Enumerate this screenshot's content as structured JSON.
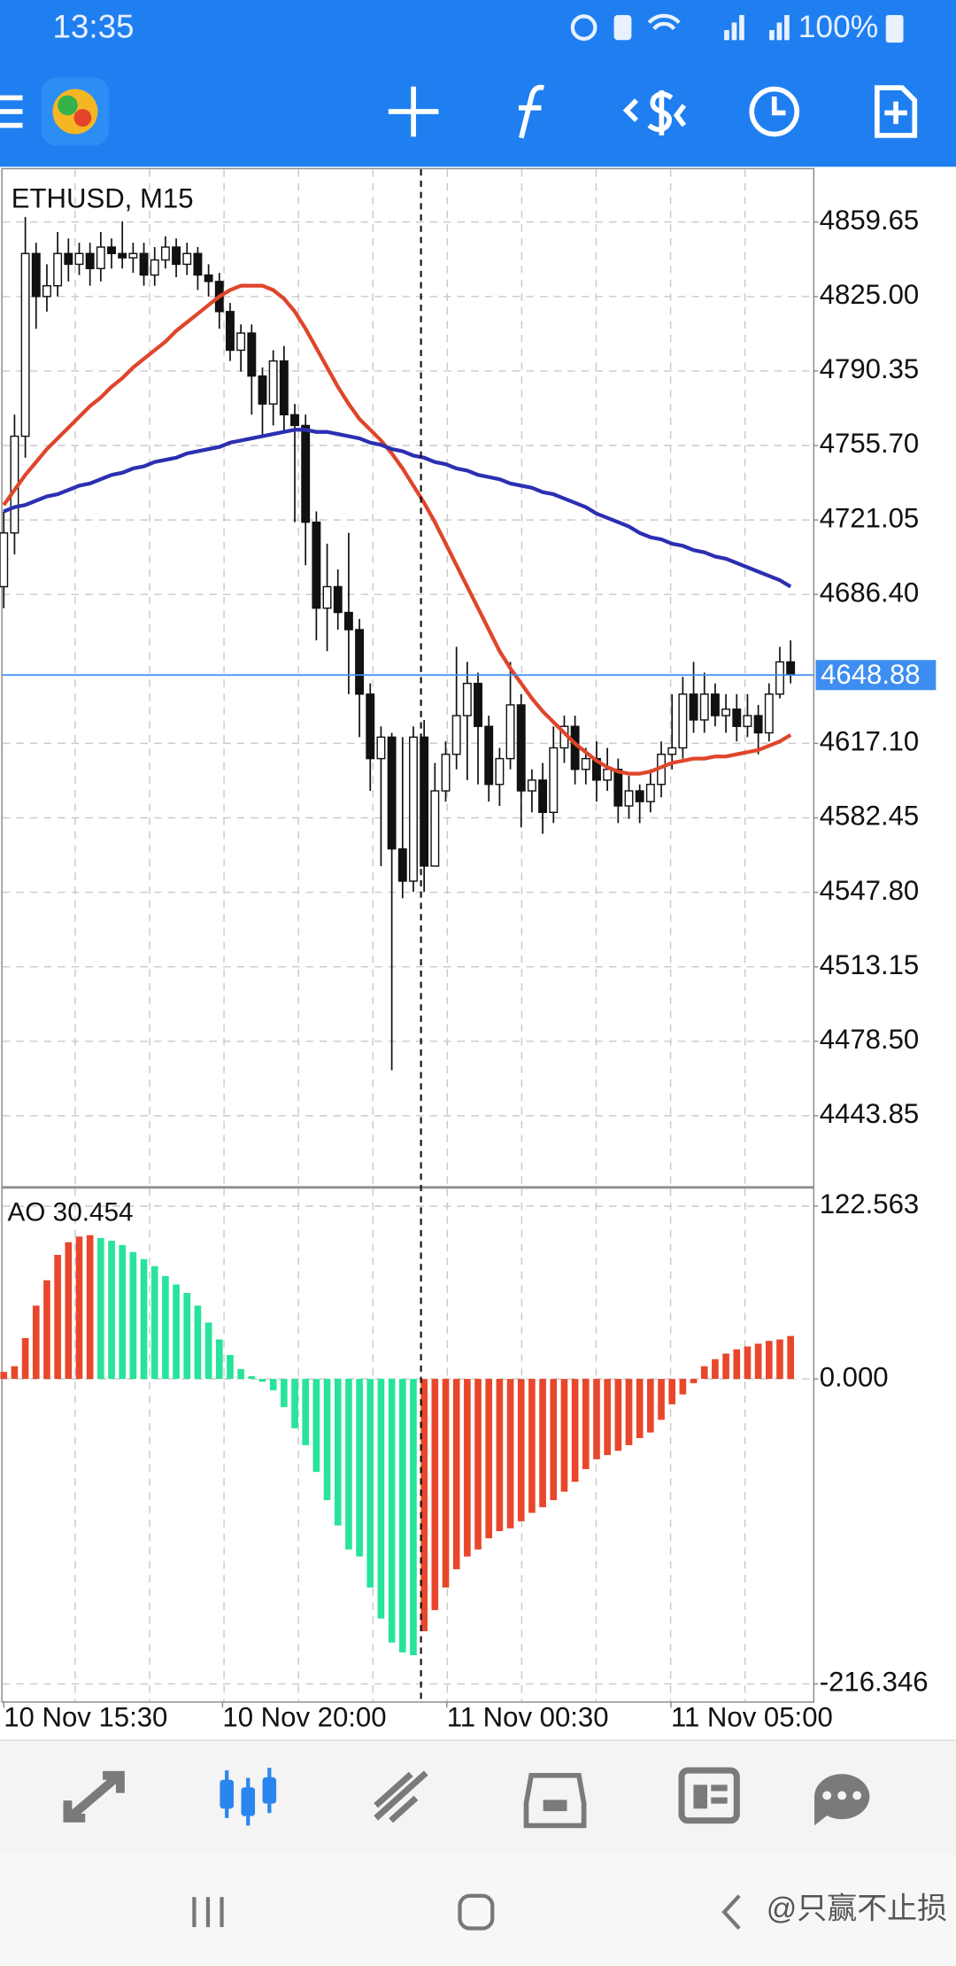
{
  "status_bar": {
    "time": "13:35",
    "battery": "100%"
  },
  "watermark": "@只赢不止损",
  "chart_data": [
    {
      "type": "candlestick",
      "title": "ETHUSD, M15",
      "candles": {
        "open": [
          4690,
          4715,
          4760,
          4845,
          4825,
          4830,
          4845,
          4840,
          4845,
          4838,
          4848,
          4845,
          4843,
          4845,
          4835,
          4842,
          4848,
          4840,
          4845,
          4835,
          4832,
          4818,
          4800,
          4808,
          4788,
          4775,
          4795,
          4770,
          4765,
          4720,
          4680,
          4690,
          4678,
          4670,
          4640,
          4610,
          4620,
          4568,
          4553,
          4620,
          4560,
          4595,
          4612,
          4630,
          4645,
          4625,
          4598,
          4610,
          4635,
          4595,
          4600,
          4585,
          4615,
          4625,
          4605,
          4610,
          4600,
          4605,
          4588,
          4595,
          4590,
          4598,
          4612,
          4615,
          4640,
          4628,
          4640,
          4630,
          4633,
          4625,
          4630,
          4622,
          4640,
          4655
        ],
        "high": [
          4725,
          4770,
          4862,
          4850,
          4840,
          4855,
          4852,
          4850,
          4850,
          4855,
          4852,
          4860,
          4850,
          4850,
          4848,
          4853,
          4852,
          4850,
          4848,
          4840,
          4836,
          4822,
          4812,
          4812,
          4792,
          4800,
          4802,
          4775,
          4770,
          4725,
          4710,
          4698,
          4715,
          4675,
          4645,
          4625,
          4622,
          4620,
          4625,
          4628,
          4608,
          4618,
          4662,
          4655,
          4650,
          4630,
          4615,
          4655,
          4640,
          4605,
          4608,
          4625,
          4630,
          4630,
          4615,
          4618,
          4615,
          4610,
          4602,
          4598,
          4605,
          4618,
          4640,
          4648,
          4655,
          4650,
          4645,
          4640,
          4640,
          4640,
          4635,
          4645,
          4662,
          4665
        ],
        "low": [
          4680,
          4705,
          4750,
          4810,
          4818,
          4825,
          4832,
          4835,
          4830,
          4832,
          4838,
          4838,
          4836,
          4830,
          4830,
          4838,
          4834,
          4835,
          4828,
          4825,
          4810,
          4795,
          4790,
          4770,
          4760,
          4765,
          4762,
          4720,
          4700,
          4665,
          4660,
          4670,
          4640,
          4620,
          4595,
          4560,
          4465,
          4545,
          4548,
          4548,
          4570,
          4590,
          4605,
          4600,
          4598,
          4590,
          4588,
          4605,
          4578,
          4585,
          4575,
          4580,
          4608,
          4598,
          4598,
          4590,
          4595,
          4580,
          4582,
          4580,
          4585,
          4592,
          4605,
          4610,
          4622,
          4622,
          4625,
          4622,
          4618,
          4620,
          4612,
          4618,
          4638,
          4645
        ],
        "close": [
          4715,
          4760,
          4845,
          4825,
          4830,
          4845,
          4840,
          4845,
          4838,
          4848,
          4845,
          4843,
          4845,
          4835,
          4842,
          4848,
          4840,
          4845,
          4835,
          4832,
          4818,
          4800,
          4808,
          4788,
          4775,
          4795,
          4770,
          4765,
          4720,
          4680,
          4690,
          4678,
          4670,
          4640,
          4610,
          4620,
          4568,
          4553,
          4620,
          4560,
          4595,
          4612,
          4630,
          4645,
          4625,
          4598,
          4610,
          4635,
          4595,
          4600,
          4585,
          4615,
          4625,
          4605,
          4610,
          4600,
          4605,
          4588,
          4595,
          4590,
          4598,
          4612,
          4615,
          4640,
          4628,
          4640,
          4630,
          4633,
          4625,
          4630,
          4622,
          4640,
          4655,
          4648.88
        ]
      },
      "up_color": "#ffffff",
      "down_color": "#111111",
      "lines": [
        {
          "color": "#e0452b",
          "values": [
            4728,
            4735,
            4742,
            4748,
            4754,
            4759,
            4764,
            4769,
            4774,
            4778,
            4783,
            4787,
            4792,
            4796,
            4800,
            4804,
            4809,
            4813,
            4817,
            4821,
            4825,
            4828,
            4830,
            4830,
            4830,
            4828,
            4824,
            4818,
            4810,
            4801,
            4792,
            4783,
            4775,
            4768,
            4763,
            4758,
            4752,
            4745,
            4737,
            4729,
            4720,
            4710,
            4700,
            4690,
            4680,
            4670,
            4660,
            4652,
            4645,
            4638,
            4632,
            4627,
            4622,
            4617,
            4613,
            4609,
            4606,
            4604,
            4603,
            4603,
            4604,
            4606,
            4608,
            4609,
            4610,
            4610,
            4611,
            4611,
            4612,
            4613,
            4614,
            4616,
            4618,
            4621
          ]
        },
        {
          "color": "#2c2fb0",
          "values": [
            4725,
            4727,
            4728,
            4730,
            4732,
            4733,
            4735,
            4737,
            4738,
            4740,
            4742,
            4743,
            4745,
            4746,
            4748,
            4749,
            4750,
            4752,
            4753,
            4754,
            4755,
            4757,
            4758,
            4759,
            4760,
            4761,
            4762,
            4763,
            4763,
            4762,
            4762,
            4761,
            4760,
            4759,
            4757,
            4756,
            4754,
            4753,
            4751,
            4750,
            4748,
            4747,
            4745,
            4744,
            4742,
            4741,
            4740,
            4738,
            4737,
            4736,
            4734,
            4733,
            4731,
            4729,
            4727,
            4724,
            4722,
            4720,
            4718,
            4715,
            4713,
            4712,
            4710,
            4709,
            4707,
            4706,
            4704,
            4703,
            4701,
            4699,
            4697,
            4695,
            4693,
            4690
          ]
        }
      ],
      "price_line_color": "#3d8ef0",
      "ylim": [
        4411.1,
        4884.2
      ],
      "yticks": [
        4859.65,
        {
          "value": 4825,
          "label": "4825.00"
        },
        4790.35,
        {
          "value": 4755.7,
          "label": "4755.70"
        },
        4721.05,
        {
          "value": 4686.4,
          "label": "4686.40"
        },
        {
          "value": 4617.1,
          "label": "4617.10"
        },
        4582.45,
        {
          "value": 4547.8,
          "label": "4547.80"
        },
        4513.15,
        {
          "value": 4478.5,
          "label": "4478.50"
        },
        4443.85
      ],
      "xticks": [
        {
          "value": 0,
          "label": "10 Nov 15:30"
        },
        {
          "value": 20.3,
          "label": "10 Nov 20:00"
        },
        {
          "value": 41.1,
          "label": "11 Nov 00:30"
        },
        {
          "value": 61.9,
          "label": "11 Nov 05:00"
        }
      ],
      "grid": true
    },
    {
      "type": "bar",
      "title": "AO 30.454",
      "values": [
        5,
        9,
        29,
        52,
        70,
        88,
        97,
        101,
        102,
        100,
        98,
        95,
        90,
        85,
        80,
        73,
        67,
        61,
        52,
        40,
        28,
        17,
        7,
        2,
        -2,
        -8,
        -20,
        -35,
        -47,
        -66,
        -86,
        -104,
        -121,
        -126,
        -148,
        -170,
        -187,
        -194,
        -196,
        -179,
        -164,
        -148,
        -135,
        -126,
        -121,
        -113,
        -108,
        -106,
        -101,
        -95,
        -91,
        -86,
        -80,
        -73,
        -64,
        -57,
        -54,
        -51,
        -47,
        -42,
        -38,
        -29,
        -18,
        -11,
        -3,
        9,
        14,
        18,
        21,
        23,
        25,
        27,
        28,
        30.454
      ],
      "up_color": "#e8472b",
      "down_color": "#27e49a",
      "ylim": [
        -228.8,
        135.0
      ],
      "yticks": [
        122.563,
        {
          "value": 0,
          "label": "0.000"
        },
        -216.346
      ],
      "grid": true
    }
  ]
}
